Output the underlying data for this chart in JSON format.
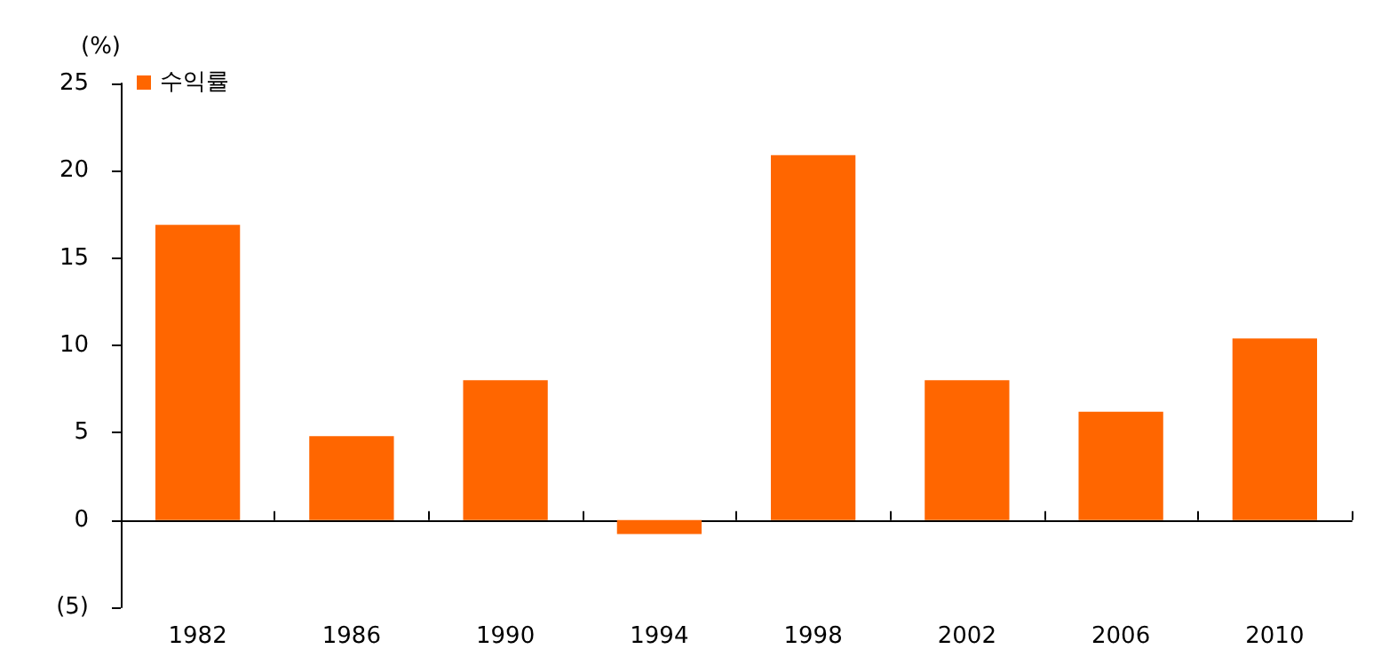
{
  "chart_data": {
    "type": "bar",
    "ylabel": "(%)",
    "categories": [
      "1982",
      "1986",
      "1990",
      "1994",
      "1998",
      "2002",
      "2006",
      "2010"
    ],
    "series": [
      {
        "name": "수익률",
        "color": "#ff6600",
        "values": [
          16.9,
          4.8,
          8.0,
          -0.8,
          20.9,
          8.0,
          6.2,
          10.4
        ]
      }
    ],
    "ylim": [
      -5,
      25
    ],
    "yticks": [
      {
        "value": -5,
        "label": "(5)"
      },
      0,
      5,
      10,
      15,
      20,
      25
    ],
    "legend": "top left"
  }
}
